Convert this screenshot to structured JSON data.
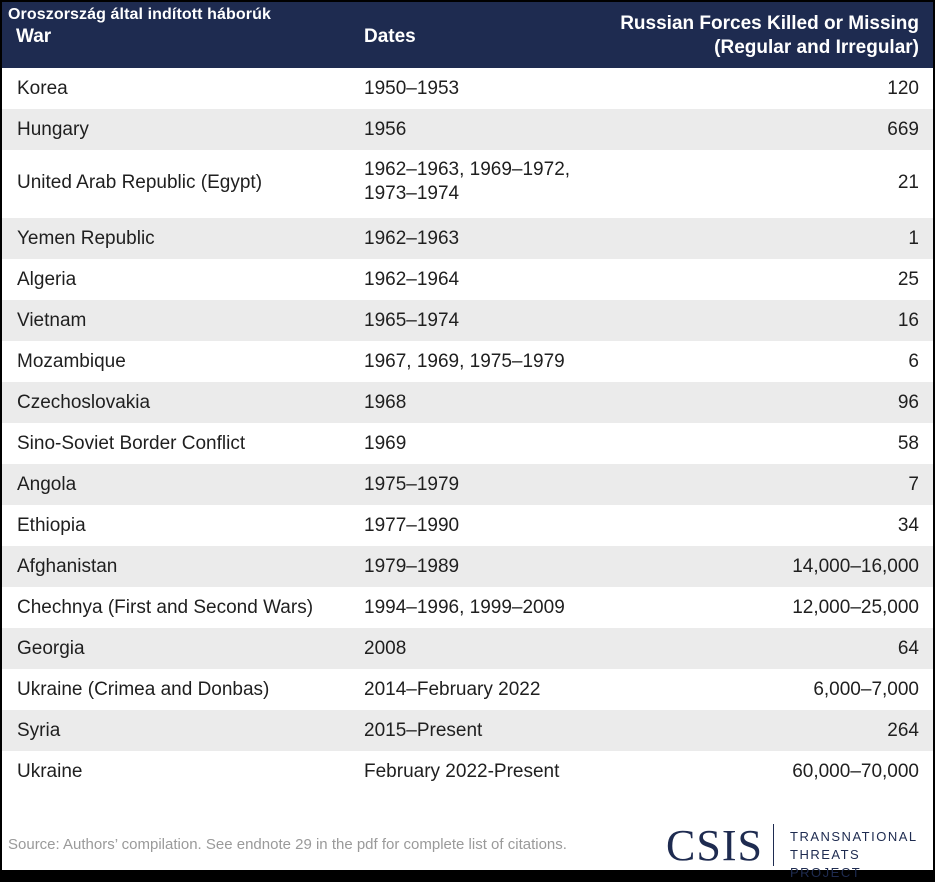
{
  "overlay_title": "Oroszország által indított háborúk",
  "header": {
    "war": "War",
    "dates": "Dates",
    "forces_line1": "Russian Forces Killed or Missing",
    "forces_line2": "(Regular and Irregular)"
  },
  "rows": [
    {
      "war": "Korea",
      "dates": "1950–1953",
      "dates2": "",
      "killed": "120"
    },
    {
      "war": "Hungary",
      "dates": "1956",
      "dates2": "",
      "killed": "669"
    },
    {
      "war": "United Arab Republic (Egypt)",
      "dates": "1962–1963, 1969–1972,",
      "dates2": "1973–1974",
      "killed": "21"
    },
    {
      "war": "Yemen Republic",
      "dates": "1962–1963",
      "dates2": "",
      "killed": "1"
    },
    {
      "war": "Algeria",
      "dates": "1962–1964",
      "dates2": "",
      "killed": "25"
    },
    {
      "war": "Vietnam",
      "dates": "1965–1974",
      "dates2": "",
      "killed": "16"
    },
    {
      "war": "Mozambique",
      "dates": "1967, 1969, 1975–1979",
      "dates2": "",
      "killed": "6"
    },
    {
      "war": "Czechoslovakia",
      "dates": "1968",
      "dates2": "",
      "killed": "96"
    },
    {
      "war": "Sino-Soviet Border Conflict",
      "dates": "1969",
      "dates2": "",
      "killed": "58"
    },
    {
      "war": "Angola",
      "dates": "1975–1979",
      "dates2": "",
      "killed": "7"
    },
    {
      "war": "Ethiopia",
      "dates": "1977–1990",
      "dates2": "",
      "killed": "34"
    },
    {
      "war": "Afghanistan",
      "dates": "1979–1989",
      "dates2": "",
      "killed": "14,000–16,000"
    },
    {
      "war": "Chechnya (First and Second Wars)",
      "dates": "1994–1996, 1999–2009",
      "dates2": "",
      "killed": "12,000–25,000"
    },
    {
      "war": "Georgia",
      "dates": "2008",
      "dates2": "",
      "killed": "64"
    },
    {
      "war": "Ukraine (Crimea and Donbas)",
      "dates": "2014–February 2022",
      "dates2": "",
      "killed": "6,000–7,000"
    },
    {
      "war": "Syria",
      "dates": "2015–Present",
      "dates2": "",
      "killed": "264"
    },
    {
      "war": "Ukraine",
      "dates": "February 2022-Present",
      "dates2": "",
      "killed": "60,000–70,000"
    }
  ],
  "footer": {
    "source": "Source: Authors’ compilation. See endnote 29 in the pdf for complete list of citations.",
    "logo": "CSIS",
    "logo_sub1": "TRANSNATIONAL",
    "logo_sub2": "THREATS PROJECT"
  },
  "colors": {
    "header_bg": "#1e2b50",
    "row_alt": "#ebebeb",
    "source_text": "#9a9a9a"
  }
}
